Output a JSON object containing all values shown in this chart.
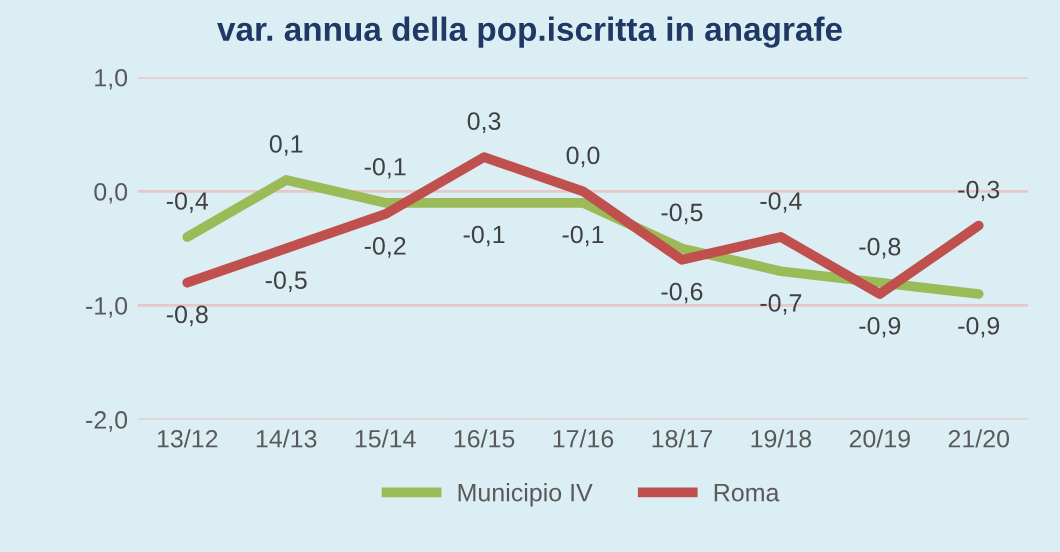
{
  "chart_data": {
    "type": "line",
    "title": "var. annua della pop.iscritta in anagrafe",
    "categories": [
      "13/12",
      "14/13",
      "15/14",
      "16/15",
      "17/16",
      "18/17",
      "19/18",
      "20/19",
      "21/20"
    ],
    "series": [
      {
        "name": "Municipio IV",
        "color": "#9bbb59",
        "values": [
          -0.4,
          0.1,
          -0.1,
          -0.1,
          -0.1,
          -0.5,
          -0.7,
          -0.8,
          -0.9
        ],
        "value_labels": [
          "-0,4",
          "0,1",
          "-0,1",
          "-0,1",
          "-0,1",
          "-0,5",
          "-0,7",
          "-0,8",
          "-0,9"
        ]
      },
      {
        "name": "Roma",
        "color": "#c0504d",
        "values": [
          -0.8,
          -0.5,
          -0.2,
          0.3,
          0.0,
          -0.6,
          -0.4,
          -0.9,
          -0.3
        ],
        "value_labels": [
          "-0,8",
          "-0,5",
          "-0,2",
          "0,3",
          "0,0",
          "-0,6",
          "-0,4",
          "-0,9",
          "-0,3"
        ]
      }
    ],
    "ylim": [
      -2,
      1
    ],
    "yticks": [
      {
        "value": -2,
        "label": "-2,0"
      },
      {
        "value": -1,
        "label": "-1,0"
      },
      {
        "value": 0,
        "label": "0,0"
      },
      {
        "value": 1,
        "label": "1,0"
      }
    ],
    "grid": "y",
    "legend": "bottom",
    "marker": "none",
    "line_style": "solid"
  }
}
